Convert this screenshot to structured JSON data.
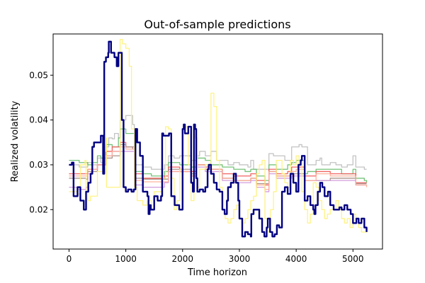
{
  "chart_data": {
    "type": "line",
    "title": "Out-of-sample predictions",
    "xlabel": "Time horizon",
    "ylabel": "Realized volatility",
    "xlim": [
      -280,
      5520
    ],
    "ylim": [
      0.0112,
      0.0592
    ],
    "xticks": [
      0,
      1000,
      2000,
      3000,
      4000,
      5000
    ],
    "yticks": [
      0.02,
      0.03,
      0.04,
      0.05
    ],
    "xtick_labels": [
      "0",
      "1000",
      "2000",
      "3000",
      "4000",
      "5000"
    ],
    "ytick_labels": [
      "0.02",
      "0.03",
      "0.04",
      "0.05"
    ],
    "grid": false,
    "legend": false,
    "series": [
      {
        "color": "#bdbdbd",
        "x": [
          0,
          180,
          300,
          330,
          400,
          500,
          560,
          600,
          650,
          700,
          760,
          800,
          870,
          900,
          1000,
          1120,
          1150,
          1300,
          1450,
          1680,
          1750,
          1850,
          1950,
          2000,
          2150,
          2250,
          2300,
          2400,
          2500,
          2600,
          2700,
          2800,
          2900,
          3000,
          3150,
          3200,
          3250,
          3300,
          3400,
          3500,
          3520,
          3600,
          3650,
          3750,
          3800,
          3850,
          3920,
          4000,
          4050,
          4100,
          4150,
          4200,
          4300,
          4350,
          4420,
          4450,
          4600,
          4700,
          4800,
          4900,
          5000,
          5050,
          5100,
          5200,
          5240
        ],
        "values": [
          0.03,
          0.0295,
          0.0295,
          0.0305,
          0.03,
          0.0315,
          0.0305,
          0.03,
          0.034,
          0.036,
          0.0358,
          0.037,
          0.036,
          0.04,
          0.041,
          0.039,
          0.03,
          0.0295,
          0.029,
          0.03,
          0.032,
          0.0315,
          0.032,
          0.032,
          0.031,
          0.032,
          0.033,
          0.032,
          0.033,
          0.031,
          0.031,
          0.03,
          0.0305,
          0.03,
          0.0295,
          0.031,
          0.029,
          0.029,
          0.029,
          0.029,
          0.0325,
          0.032,
          0.032,
          0.032,
          0.031,
          0.031,
          0.034,
          0.034,
          0.0345,
          0.034,
          0.034,
          0.03,
          0.03,
          0.031,
          0.0315,
          0.03,
          0.0305,
          0.03,
          0.0295,
          0.03,
          0.032,
          0.0295,
          0.0295,
          0.029,
          0.029
        ]
      },
      {
        "color": "#66bb6a",
        "x": [
          0,
          180,
          300,
          330,
          400,
          500,
          560,
          650,
          760,
          870,
          900,
          1000,
          1120,
          1150,
          1300,
          1450,
          1680,
          1750,
          1950,
          2150,
          2250,
          2400,
          2500,
          2700,
          2900,
          3100,
          3200,
          3300,
          3450,
          3520,
          3650,
          3850,
          3920,
          4000,
          4150,
          4200,
          4350,
          4600,
          4800,
          5000,
          5050,
          5200,
          5240
        ],
        "values": [
          0.031,
          0.0305,
          0.0305,
          0.03,
          0.0305,
          0.032,
          0.0315,
          0.0345,
          0.034,
          0.036,
          0.038,
          0.037,
          0.037,
          0.0285,
          0.028,
          0.0275,
          0.0285,
          0.0305,
          0.03,
          0.0295,
          0.0315,
          0.031,
          0.03,
          0.0295,
          0.029,
          0.0285,
          0.029,
          0.0275,
          0.0265,
          0.03,
          0.029,
          0.03,
          0.0305,
          0.031,
          0.028,
          0.0285,
          0.029,
          0.029,
          0.028,
          0.029,
          0.027,
          0.0265,
          0.026
        ]
      },
      {
        "color": "#ef5350",
        "x": [
          0,
          300,
          330,
          500,
          650,
          760,
          900,
          1000,
          1120,
          1150,
          1300,
          1680,
          1750,
          1950,
          2150,
          2250,
          2400,
          2500,
          2700,
          2900,
          3200,
          3300,
          3450,
          3520,
          3650,
          3850,
          3920,
          4000,
          4150,
          4200,
          4350,
          4600,
          5000,
          5050,
          5240
        ],
        "values": [
          0.028,
          0.028,
          0.029,
          0.03,
          0.033,
          0.034,
          0.035,
          0.034,
          0.034,
          0.028,
          0.027,
          0.0275,
          0.0295,
          0.0285,
          0.0285,
          0.03,
          0.0295,
          0.029,
          0.028,
          0.0275,
          0.028,
          0.0265,
          0.0255,
          0.029,
          0.028,
          0.0285,
          0.0295,
          0.0295,
          0.0275,
          0.0275,
          0.0285,
          0.028,
          0.028,
          0.026,
          0.026
        ]
      },
      {
        "color": "#a1887f",
        "x": [
          0,
          300,
          330,
          500,
          650,
          760,
          900,
          1000,
          1120,
          1150,
          1300,
          1680,
          1750,
          2150,
          2250,
          2400,
          2700,
          2900,
          3200,
          3300,
          3520,
          3650,
          3920,
          4150,
          4600,
          5000,
          5050,
          5240
        ],
        "values": [
          0.027,
          0.0268,
          0.0285,
          0.03,
          0.0315,
          0.032,
          0.0345,
          0.034,
          0.0335,
          0.027,
          0.0268,
          0.0268,
          0.029,
          0.028,
          0.03,
          0.029,
          0.027,
          0.0265,
          0.027,
          0.0258,
          0.0285,
          0.0275,
          0.028,
          0.0265,
          0.027,
          0.027,
          0.0258,
          0.0258
        ]
      },
      {
        "color": "#ce93d8",
        "x": [
          0,
          150,
          300,
          330,
          400,
          500,
          650,
          760,
          870,
          1000,
          1150,
          1300,
          1680,
          1750,
          2150,
          2250,
          2400,
          2700,
          2900,
          3200,
          3300,
          3450,
          3520,
          3650,
          3920,
          4150,
          4600,
          5000,
          5050,
          5240
        ],
        "values": [
          0.025,
          0.0245,
          0.025,
          0.028,
          0.029,
          0.03,
          0.032,
          0.033,
          0.033,
          0.033,
          0.0255,
          0.025,
          0.026,
          0.0285,
          0.0275,
          0.0295,
          0.0285,
          0.0265,
          0.026,
          0.0265,
          0.025,
          0.024,
          0.028,
          0.027,
          0.0275,
          0.0265,
          0.0265,
          0.0265,
          0.0255,
          0.0255
        ]
      },
      {
        "color": "#ffab91",
        "x": [
          0,
          300,
          330,
          500,
          650,
          760,
          900,
          1000,
          1150,
          1300,
          1680,
          1750,
          2150,
          2250,
          2400,
          2700,
          2900,
          3200,
          3300,
          3450,
          3520,
          3650,
          3920,
          4000,
          4150,
          4350,
          4600,
          5000,
          5050,
          5240
        ],
        "values": [
          0.0275,
          0.0275,
          0.029,
          0.03,
          0.032,
          0.033,
          0.034,
          0.0335,
          0.0265,
          0.0262,
          0.0262,
          0.0285,
          0.0275,
          0.03,
          0.029,
          0.027,
          0.0265,
          0.027,
          0.0255,
          0.0245,
          0.0285,
          0.0275,
          0.0285,
          0.029,
          0.0265,
          0.028,
          0.0275,
          0.0275,
          0.0255,
          0.025
        ]
      },
      {
        "color": "#fff176",
        "x": [
          0,
          150,
          200,
          280,
          300,
          330,
          380,
          500,
          600,
          650,
          660,
          880,
          900,
          940,
          1000,
          1060,
          1100,
          1150,
          1200,
          1300,
          1380,
          1450,
          1500,
          1640,
          1650,
          1700,
          1750,
          1800,
          1850,
          1900,
          1950,
          2000,
          2050,
          2100,
          2150,
          2200,
          2220,
          2260,
          2300,
          2400,
          2500,
          2550,
          2600,
          2650,
          2700,
          2750,
          2800,
          2850,
          2900,
          2950,
          3000,
          3050,
          3100,
          3150,
          3200,
          3250,
          3300,
          3350,
          3400,
          3450,
          3500,
          3550,
          3600,
          3650,
          3700,
          3750,
          3800,
          3850,
          3900,
          3950,
          4000,
          4050,
          4100,
          4150,
          4200,
          4250,
          4300,
          4350,
          4400,
          4450,
          4500,
          4550,
          4600,
          4650,
          4700,
          4750,
          4800,
          4850,
          4900,
          4950,
          5000,
          5050,
          5100,
          5150,
          5200,
          5240
        ],
        "values": [
          0.024,
          0.0235,
          0.03,
          0.031,
          0.024,
          0.022,
          0.023,
          0.0285,
          0.033,
          0.036,
          0.025,
          0.025,
          0.058,
          0.057,
          0.056,
          0.052,
          0.038,
          0.025,
          0.022,
          0.021,
          0.022,
          0.02,
          0.024,
          0.023,
          0.027,
          0.0385,
          0.038,
          0.027,
          0.02,
          0.022,
          0.029,
          0.038,
          0.0385,
          0.03,
          0.022,
          0.038,
          0.036,
          0.025,
          0.029,
          0.03,
          0.046,
          0.043,
          0.031,
          0.025,
          0.02,
          0.018,
          0.017,
          0.018,
          0.02,
          0.021,
          0.018,
          0.017,
          0.018,
          0.02,
          0.022,
          0.023,
          0.028,
          0.03,
          0.031,
          0.018,
          0.015,
          0.02,
          0.024,
          0.031,
          0.031,
          0.028,
          0.026,
          0.025,
          0.031,
          0.03,
          0.032,
          0.03,
          0.024,
          0.02,
          0.017,
          0.019,
          0.026,
          0.025,
          0.022,
          0.02,
          0.018,
          0.019,
          0.02,
          0.02,
          0.022,
          0.02,
          0.018,
          0.017,
          0.018,
          0.016,
          0.019,
          0.018,
          0.016,
          0.015,
          0.015,
          0.016
        ]
      },
      {
        "color": "#000080",
        "x": [
          0,
          50,
          80,
          100,
          150,
          200,
          260,
          300,
          340,
          380,
          410,
          440,
          500,
          560,
          600,
          620,
          650,
          690,
          700,
          740,
          800,
          840,
          870,
          900,
          930,
          960,
          1000,
          1040,
          1100,
          1140,
          1170,
          1200,
          1250,
          1300,
          1380,
          1400,
          1420,
          1440,
          1500,
          1560,
          1620,
          1640,
          1660,
          1700,
          1760,
          1800,
          1860,
          1940,
          1980,
          2000,
          2020,
          2040,
          2100,
          2150,
          2180,
          2200,
          2220,
          2240,
          2260,
          2300,
          2360,
          2400,
          2440,
          2460,
          2500,
          2550,
          2600,
          2650,
          2700,
          2740,
          2780,
          2800,
          2850,
          2900,
          2940,
          2980,
          3000,
          3050,
          3100,
          3150,
          3200,
          3210,
          3250,
          3300,
          3350,
          3400,
          3440,
          3480,
          3500,
          3540,
          3580,
          3620,
          3660,
          3700,
          3750,
          3800,
          3850,
          3900,
          3950,
          4000,
          4040,
          4080,
          4100,
          4150,
          4200,
          4250,
          4300,
          4320,
          4340,
          4380,
          4420,
          4460,
          4500,
          4560,
          4600,
          4660,
          4720,
          4760,
          4800,
          4850,
          4900,
          4960,
          5000,
          5060,
          5100,
          5150,
          5200,
          5240
        ],
        "values": [
          0.03,
          0.0305,
          0.023,
          0.023,
          0.025,
          0.022,
          0.02,
          0.024,
          0.026,
          0.028,
          0.034,
          0.035,
          0.035,
          0.0365,
          0.028,
          0.053,
          0.054,
          0.055,
          0.0575,
          0.055,
          0.054,
          0.052,
          0.055,
          0.055,
          0.04,
          0.025,
          0.024,
          0.0245,
          0.024,
          0.0245,
          0.038,
          0.035,
          0.032,
          0.024,
          0.023,
          0.019,
          0.021,
          0.02,
          0.023,
          0.022,
          0.023,
          0.037,
          0.0365,
          0.0365,
          0.037,
          0.023,
          0.021,
          0.02,
          0.02,
          0.038,
          0.039,
          0.037,
          0.0385,
          0.026,
          0.024,
          0.039,
          0.038,
          0.027,
          0.024,
          0.0245,
          0.024,
          0.025,
          0.029,
          0.03,
          0.028,
          0.026,
          0.0245,
          0.024,
          0.02,
          0.019,
          0.022,
          0.025,
          0.026,
          0.028,
          0.026,
          0.022,
          0.018,
          0.014,
          0.015,
          0.0145,
          0.014,
          0.019,
          0.02,
          0.02,
          0.018,
          0.015,
          0.014,
          0.016,
          0.018,
          0.015,
          0.014,
          0.0145,
          0.0165,
          0.016,
          0.024,
          0.025,
          0.0235,
          0.028,
          0.026,
          0.024,
          0.03,
          0.031,
          0.032,
          0.022,
          0.023,
          0.021,
          0.02,
          0.019,
          0.021,
          0.024,
          0.026,
          0.025,
          0.023,
          0.024,
          0.021,
          0.02,
          0.02,
          0.0205,
          0.02,
          0.021,
          0.02,
          0.019,
          0.017,
          0.018,
          0.017,
          0.018,
          0.016,
          0.015
        ]
      }
    ]
  }
}
